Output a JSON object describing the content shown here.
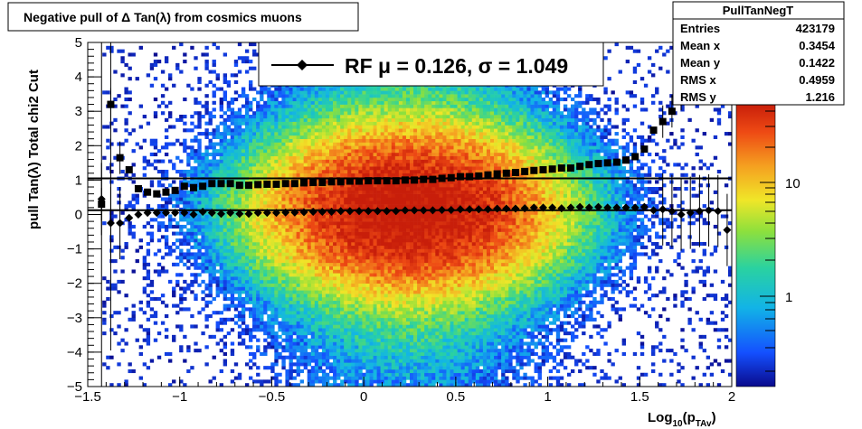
{
  "chart_data": {
    "type": "heatmap",
    "title": "Negative pull of Δ Tan(λ) from cosmics muons",
    "xlabel_base": "Log",
    "xlabel_sub1": "10",
    "xlabel_mid": "(p",
    "xlabel_sub2": "TAv",
    "xlabel_end": ")",
    "ylabel": "pull Tan(λ)  Total chi2 Cut",
    "xlim": [
      -1.5,
      2
    ],
    "ylim": [
      -5,
      5
    ],
    "x_ticks": [
      "−1.5",
      "−1",
      "−0.5",
      "0",
      "0.5",
      "1",
      "1.5",
      "2"
    ],
    "y_ticks": [
      "−5",
      "−4",
      "−3",
      "−2",
      "−1",
      "0",
      "1",
      "2",
      "3",
      "4",
      "5"
    ],
    "z_scale": "log",
    "z_ticks": [
      "1",
      "10"
    ],
    "legend": "RF μ =  0.126, σ =   1.049",
    "stats": {
      "name": "PullTanNegT",
      "rows": [
        {
          "label": "Entries",
          "value": "423179"
        },
        {
          "label": "Mean x",
          "value": "0.3454"
        },
        {
          "label": "Mean y",
          "value": "0.1422"
        },
        {
          "label": "RMS x",
          "value": "0.4959"
        },
        {
          "label": "RMS y",
          "value": "1.216"
        }
      ]
    },
    "mean_line": 0.126,
    "sigma_line": 1.049,
    "profile_x": [
      -1.425,
      -1.375,
      -1.325,
      -1.275,
      -1.225,
      -1.175,
      -1.125,
      -1.075,
      -1.025,
      -0.975,
      -0.925,
      -0.875,
      -0.825,
      -0.775,
      -0.725,
      -0.675,
      -0.625,
      -0.575,
      -0.525,
      -0.475,
      -0.425,
      -0.375,
      -0.325,
      -0.275,
      -0.225,
      -0.175,
      -0.125,
      -0.075,
      -0.025,
      0.025,
      0.075,
      0.125,
      0.175,
      0.225,
      0.275,
      0.325,
      0.375,
      0.425,
      0.475,
      0.525,
      0.575,
      0.625,
      0.675,
      0.725,
      0.775,
      0.825,
      0.875,
      0.925,
      0.975,
      1.025,
      1.075,
      1.125,
      1.175,
      1.225,
      1.275,
      1.325,
      1.375,
      1.425,
      1.475,
      1.525,
      1.575,
      1.625,
      1.675,
      1.725,
      1.775,
      1.825,
      1.875,
      1.925,
      1.975
    ],
    "sigma_values": [
      0.3,
      3.2,
      1.65,
      1.3,
      0.75,
      0.65,
      0.6,
      0.65,
      0.7,
      0.82,
      0.78,
      0.82,
      0.9,
      0.9,
      0.9,
      0.85,
      0.85,
      0.87,
      0.88,
      0.88,
      0.9,
      0.9,
      0.92,
      0.93,
      0.93,
      0.95,
      0.95,
      0.97,
      0.97,
      0.98,
      0.98,
      0.98,
      0.98,
      1.0,
      1.0,
      1.02,
      1.02,
      1.05,
      1.07,
      1.1,
      1.1,
      1.12,
      1.15,
      1.18,
      1.2,
      1.22,
      1.25,
      1.28,
      1.3,
      1.32,
      1.35,
      1.35,
      1.4,
      1.45,
      1.48,
      1.5,
      1.52,
      1.58,
      1.68,
      1.9,
      2.45,
      2.7,
      3.0,
      3.5,
      4.75,
      null,
      null,
      4.15,
      null
    ],
    "mean_values": [
      0.45,
      -0.25,
      -0.25,
      -0.1,
      0.0,
      0.05,
      0.05,
      0.05,
      0.05,
      0.05,
      0.0,
      0.08,
      0.05,
      0.02,
      0.05,
      0.02,
      0.02,
      0.05,
      0.05,
      0.05,
      0.06,
      0.06,
      0.07,
      0.08,
      0.08,
      0.08,
      0.1,
      0.1,
      0.1,
      0.1,
      0.1,
      0.1,
      0.1,
      0.12,
      0.12,
      0.12,
      0.12,
      0.13,
      0.13,
      0.15,
      0.15,
      0.15,
      0.15,
      0.17,
      0.17,
      0.17,
      0.18,
      0.2,
      0.2,
      0.2,
      0.18,
      0.2,
      0.22,
      0.2,
      0.22,
      0.2,
      0.2,
      0.2,
      0.2,
      0.22,
      0.12,
      0.15,
      0.1,
      0.0,
      0.05,
      0.1,
      0.12,
      0.1,
      -0.45
    ]
  }
}
